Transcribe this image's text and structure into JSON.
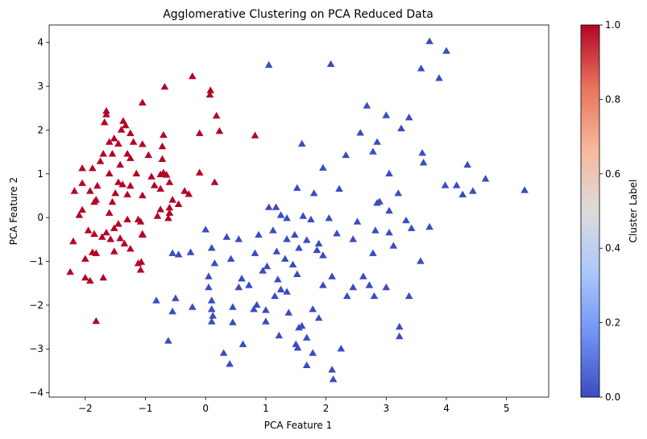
{
  "chart_data": {
    "type": "scatter",
    "title": "Agglomerative Clustering on PCA Reduced Data",
    "xlabel": "PCA Feature 1",
    "ylabel": "PCA Feature 2",
    "xlim": [
      -2.6,
      5.7
    ],
    "ylim": [
      -4.1,
      4.4
    ],
    "xticks": [
      -2,
      -1,
      0,
      1,
      2,
      3,
      4,
      5
    ],
    "yticks": [
      -4,
      -3,
      -2,
      -1,
      0,
      1,
      2,
      3,
      4
    ],
    "xtick_labels": [
      "−2",
      "−1",
      "0",
      "1",
      "2",
      "3",
      "4",
      "5"
    ],
    "ytick_labels": [
      "−4",
      "−3",
      "−2",
      "−1",
      "0",
      "1",
      "2",
      "3",
      "4"
    ],
    "marker": "triangle",
    "grid": false,
    "colors": {
      "cluster_0": "#3b4cc0",
      "cluster_1": "#b40426"
    },
    "colorbar": {
      "label": "Cluster Label",
      "range": [
        0,
        1
      ],
      "ticks": [
        0.0,
        0.2,
        0.4,
        0.6,
        0.8,
        1.0
      ],
      "tick_labels": [
        "0.0",
        "0.2",
        "0.4",
        "0.6",
        "0.8",
        "1.0"
      ],
      "colormap": "coolwarm",
      "stops": [
        "#3b4cc0",
        "#6f92f3",
        "#aac7fd",
        "#dddcdc",
        "#f7b89c",
        "#e7745b",
        "#b40426"
      ]
    },
    "series": [
      {
        "cluster": 0,
        "points": [
          [
            1.05,
            3.48
          ],
          [
            2.08,
            3.5
          ],
          [
            3.72,
            4.02
          ],
          [
            4.0,
            3.8
          ],
          [
            3.58,
            3.4
          ],
          [
            3.88,
            3.18
          ],
          [
            2.68,
            2.55
          ],
          [
            3.0,
            2.33
          ],
          [
            3.38,
            2.28
          ],
          [
            3.25,
            2.03
          ],
          [
            2.57,
            1.93
          ],
          [
            1.6,
            1.68
          ],
          [
            2.85,
            1.72
          ],
          [
            2.78,
            1.5
          ],
          [
            2.33,
            1.42
          ],
          [
            3.6,
            1.47
          ],
          [
            3.62,
            1.25
          ],
          [
            1.95,
            1.13
          ],
          [
            4.35,
            1.2
          ],
          [
            3.05,
            1.0
          ],
          [
            4.65,
            0.88
          ],
          [
            3.98,
            0.73
          ],
          [
            4.17,
            0.73
          ],
          [
            4.44,
            0.6
          ],
          [
            4.27,
            0.52
          ],
          [
            5.3,
            0.62
          ],
          [
            1.52,
            0.67
          ],
          [
            2.22,
            0.65
          ],
          [
            3.2,
            0.55
          ],
          [
            1.8,
            0.55
          ],
          [
            2.89,
            0.36
          ],
          [
            2.85,
            0.33
          ],
          [
            3.05,
            0.15
          ],
          [
            1.05,
            0.23
          ],
          [
            1.17,
            0.23
          ],
          [
            1.25,
            0.05
          ],
          [
            1.35,
            -0.02
          ],
          [
            1.62,
            0.03
          ],
          [
            2.05,
            -0.02
          ],
          [
            1.75,
            -0.05
          ],
          [
            2.52,
            -0.1
          ],
          [
            3.33,
            -0.07
          ],
          [
            3.42,
            -0.25
          ],
          [
            3.72,
            -0.22
          ],
          [
            1.12,
            -0.3
          ],
          [
            1.48,
            -0.4
          ],
          [
            2.18,
            -0.37
          ],
          [
            2.82,
            -0.3
          ],
          [
            3.05,
            -0.35
          ],
          [
            0.0,
            -0.28
          ],
          [
            0.55,
            -0.5
          ],
          [
            1.35,
            -0.5
          ],
          [
            1.68,
            -0.52
          ],
          [
            1.88,
            -0.6
          ],
          [
            2.45,
            -0.5
          ],
          [
            3.12,
            -0.65
          ],
          [
            0.35,
            -0.45
          ],
          [
            0.88,
            -0.4
          ],
          [
            1.55,
            -0.7
          ],
          [
            1.85,
            -0.75
          ],
          [
            2.78,
            -0.82
          ],
          [
            1.32,
            -0.95
          ],
          [
            1.95,
            -0.87
          ],
          [
            3.57,
            -1.0
          ],
          [
            0.1,
            -0.7
          ],
          [
            -0.45,
            -0.85
          ],
          [
            -0.25,
            -0.8
          ],
          [
            -0.55,
            -0.82
          ],
          [
            0.82,
            -0.82
          ],
          [
            1.18,
            -0.78
          ],
          [
            1.02,
            -1.12
          ],
          [
            0.95,
            -1.22
          ],
          [
            0.42,
            -0.95
          ],
          [
            0.15,
            -1.05
          ],
          [
            1.45,
            -1.08
          ],
          [
            1.52,
            -1.3
          ],
          [
            2.62,
            -1.35
          ],
          [
            0.05,
            -1.35
          ],
          [
            0.6,
            -1.4
          ],
          [
            0.72,
            -1.55
          ],
          [
            0.55,
            -1.6
          ],
          [
            1.2,
            -1.42
          ],
          [
            1.25,
            -1.65
          ],
          [
            0.05,
            -1.6
          ],
          [
            1.35,
            -1.7
          ],
          [
            1.95,
            -1.55
          ],
          [
            2.1,
            -1.35
          ],
          [
            2.72,
            -1.55
          ],
          [
            2.45,
            -1.6
          ],
          [
            3.0,
            -1.6
          ],
          [
            3.38,
            -1.8
          ],
          [
            2.35,
            -1.8
          ],
          [
            2.8,
            -1.8
          ],
          [
            -0.82,
            -1.9
          ],
          [
            -0.5,
            -1.85
          ],
          [
            0.1,
            -1.9
          ],
          [
            1.15,
            -1.8
          ],
          [
            0.85,
            -2.0
          ],
          [
            -0.55,
            -2.15
          ],
          [
            -0.22,
            -2.05
          ],
          [
            0.1,
            -2.1
          ],
          [
            0.45,
            -2.05
          ],
          [
            1.0,
            -2.12
          ],
          [
            1.38,
            -2.18
          ],
          [
            0.8,
            -2.1
          ],
          [
            1.78,
            -2.1
          ],
          [
            0.12,
            -2.25
          ],
          [
            1.88,
            -2.3
          ],
          [
            1.0,
            -2.38
          ],
          [
            0.1,
            -2.38
          ],
          [
            0.45,
            -2.4
          ],
          [
            1.6,
            -2.48
          ],
          [
            1.55,
            -2.52
          ],
          [
            3.22,
            -2.5
          ],
          [
            -0.62,
            -2.82
          ],
          [
            0.62,
            -2.9
          ],
          [
            1.22,
            -2.7
          ],
          [
            1.68,
            -2.75
          ],
          [
            1.5,
            -2.9
          ],
          [
            1.53,
            -2.98
          ],
          [
            3.22,
            -2.72
          ],
          [
            2.25,
            -3.0
          ],
          [
            0.3,
            -3.1
          ],
          [
            1.78,
            -3.1
          ],
          [
            0.4,
            -3.35
          ],
          [
            1.68,
            -3.38
          ],
          [
            2.1,
            -3.48
          ],
          [
            2.12,
            -3.7
          ]
        ]
      },
      {
        "cluster": 1,
        "points": [
          [
            -0.22,
            3.22
          ],
          [
            -0.68,
            2.98
          ],
          [
            0.08,
            2.9
          ],
          [
            0.07,
            2.8
          ],
          [
            -1.05,
            2.62
          ],
          [
            -1.65,
            2.43
          ],
          [
            -1.65,
            2.35
          ],
          [
            0.18,
            2.32
          ],
          [
            -1.37,
            2.2
          ],
          [
            -1.33,
            2.1
          ],
          [
            -1.68,
            2.17
          ],
          [
            -1.4,
            2.0
          ],
          [
            -1.25,
            1.92
          ],
          [
            -0.1,
            1.92
          ],
          [
            0.23,
            1.97
          ],
          [
            -0.7,
            1.88
          ],
          [
            -1.52,
            1.8
          ],
          [
            -1.6,
            1.72
          ],
          [
            -1.45,
            1.68
          ],
          [
            -1.2,
            1.72
          ],
          [
            -1.05,
            1.67
          ],
          [
            0.82,
            1.87
          ],
          [
            -0.72,
            1.62
          ],
          [
            -1.7,
            1.45
          ],
          [
            -1.75,
            1.28
          ],
          [
            -1.55,
            1.45
          ],
          [
            -1.3,
            1.45
          ],
          [
            -1.25,
            1.35
          ],
          [
            -0.95,
            1.42
          ],
          [
            -0.72,
            1.33
          ],
          [
            -1.42,
            1.2
          ],
          [
            -1.88,
            1.12
          ],
          [
            -2.05,
            1.12
          ],
          [
            -1.6,
            1.0
          ],
          [
            -1.15,
            1.0
          ],
          [
            -0.9,
            0.93
          ],
          [
            -0.75,
            0.98
          ],
          [
            -0.7,
            1.02
          ],
          [
            -0.65,
            0.97
          ],
          [
            -0.1,
            1.02
          ],
          [
            -2.05,
            0.78
          ],
          [
            -1.45,
            0.8
          ],
          [
            -1.38,
            0.75
          ],
          [
            -1.8,
            0.72
          ],
          [
            -0.6,
            0.8
          ],
          [
            -1.25,
            0.72
          ],
          [
            -0.85,
            0.73
          ],
          [
            -0.75,
            0.65
          ],
          [
            0.15,
            0.8
          ],
          [
            -2.18,
            0.6
          ],
          [
            -1.92,
            0.6
          ],
          [
            -1.5,
            0.55
          ],
          [
            -0.35,
            0.6
          ],
          [
            -1.3,
            0.52
          ],
          [
            -1.05,
            0.5
          ],
          [
            -0.28,
            0.53
          ],
          [
            -1.82,
            0.4
          ],
          [
            -1.85,
            0.35
          ],
          [
            -1.55,
            0.35
          ],
          [
            -0.55,
            0.4
          ],
          [
            -2.05,
            0.17
          ],
          [
            -1.6,
            0.1
          ],
          [
            -2.1,
            0.05
          ],
          [
            -0.45,
            0.3
          ],
          [
            -0.6,
            0.22
          ],
          [
            -0.75,
            0.18
          ],
          [
            -0.6,
            0.1
          ],
          [
            -1.95,
            -0.3
          ],
          [
            -1.52,
            -0.25
          ],
          [
            -1.65,
            -0.35
          ],
          [
            -1.45,
            -0.15
          ],
          [
            -1.3,
            -0.05
          ],
          [
            -1.08,
            -0.1
          ],
          [
            -1.12,
            -0.05
          ],
          [
            -0.8,
            0.03
          ],
          [
            -0.62,
            -0.02
          ],
          [
            -1.85,
            -0.38
          ],
          [
            -1.72,
            -0.45
          ],
          [
            -1.58,
            -0.5
          ],
          [
            -1.42,
            -0.48
          ],
          [
            -1.05,
            -0.38
          ],
          [
            -2.2,
            -0.55
          ],
          [
            -1.35,
            -0.6
          ],
          [
            -1.25,
            -0.72
          ],
          [
            -1.05,
            -0.4
          ],
          [
            -1.88,
            -0.8
          ],
          [
            -1.52,
            -0.78
          ],
          [
            -1.82,
            -0.82
          ],
          [
            -1.12,
            -1.05
          ],
          [
            -1.07,
            -1.02
          ],
          [
            -2.0,
            -0.95
          ],
          [
            -1.08,
            -1.2
          ],
          [
            -2.25,
            -1.25
          ],
          [
            -2.0,
            -1.38
          ],
          [
            -1.7,
            -1.38
          ],
          [
            -1.92,
            -1.45
          ],
          [
            -1.82,
            -2.37
          ]
        ]
      }
    ]
  }
}
